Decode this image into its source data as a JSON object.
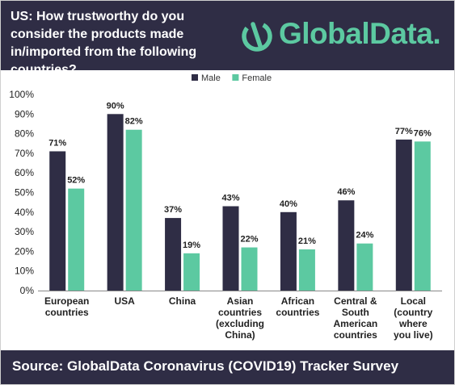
{
  "header": {
    "title": "US: How trustworthy do you consider the products made in/imported from the following countries?",
    "logo_text": "GlobalData."
  },
  "footer": {
    "source": "Source: GlobalData Coronavirus (COVID19) Tracker Survey"
  },
  "colors": {
    "header_bg": "#2f2d45",
    "male": "#2f2d45",
    "female": "#5cc9a1",
    "brand_green": "#5cc9a1"
  },
  "chart_data": {
    "type": "bar",
    "categories": [
      [
        "European",
        "countries"
      ],
      [
        "USA"
      ],
      [
        "China"
      ],
      [
        "Asian",
        "countries",
        "(excluding",
        "China)"
      ],
      [
        "African",
        "countries"
      ],
      [
        "Central &",
        "South",
        "American",
        "countries"
      ],
      [
        "Local",
        "(country",
        "where",
        "you live)"
      ]
    ],
    "series": [
      {
        "name": "Male",
        "color": "#2f2d45",
        "values": [
          71,
          90,
          37,
          43,
          40,
          46,
          77
        ]
      },
      {
        "name": "Female",
        "color": "#5cc9a1",
        "values": [
          52,
          82,
          19,
          22,
          21,
          24,
          76
        ]
      }
    ],
    "value_suffix": "%",
    "ylim": [
      0,
      100
    ],
    "yticks": [
      "0%",
      "10%",
      "20%",
      "30%",
      "40%",
      "50%",
      "60%",
      "70%",
      "80%",
      "90%",
      "100%"
    ],
    "legend_position": "top-center",
    "grid": false
  }
}
